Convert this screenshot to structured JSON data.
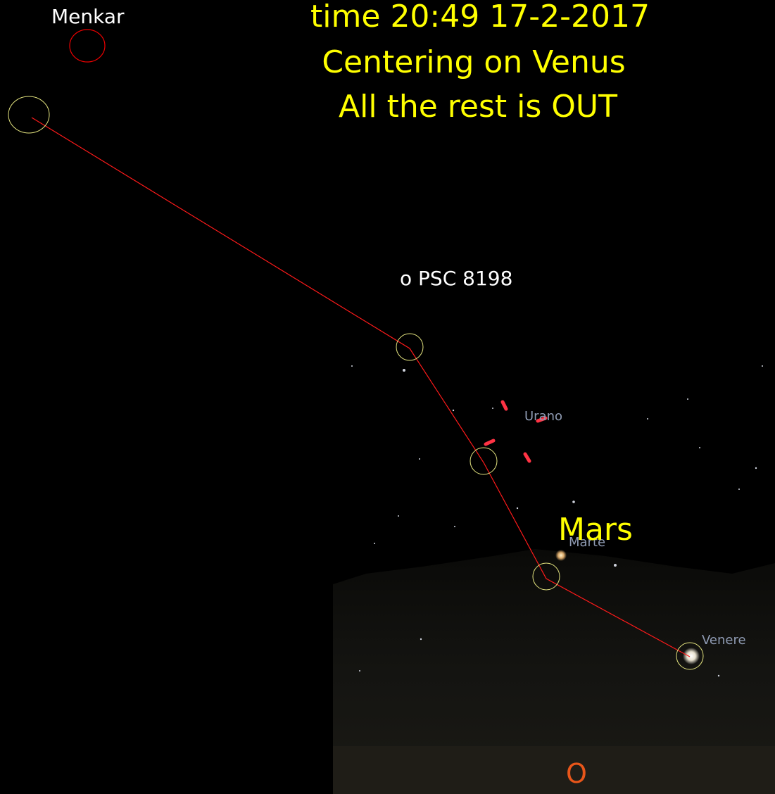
{
  "header": {
    "lines": [
      "time 20:49 17-2-2017",
      "Centering on Venus",
      "All the rest is OUT"
    ]
  },
  "labels": {
    "menkar": "Menkar",
    "star": "o PSC 8198",
    "mars_note": "Mars"
  },
  "sky_labels": {
    "uranus": "Urano",
    "mars": "Marte",
    "venus": "Venere",
    "cardinal": "O"
  }
}
